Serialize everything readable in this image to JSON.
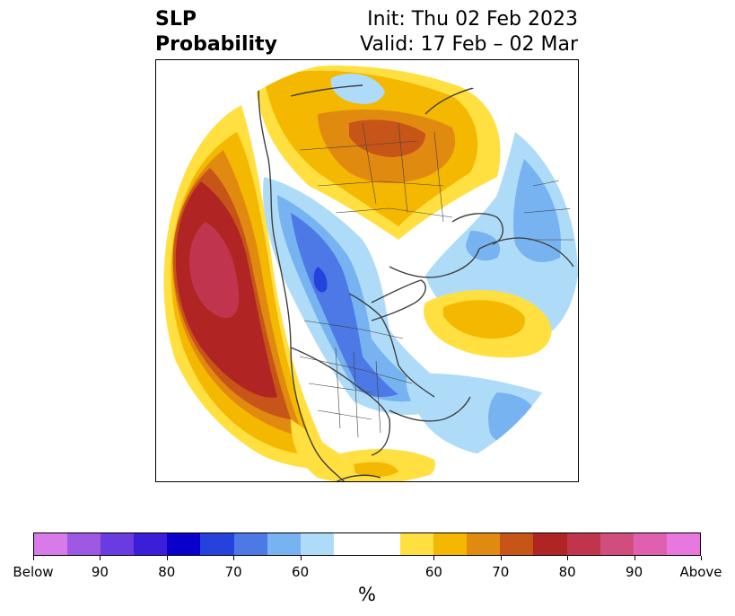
{
  "title": {
    "variable": "SLP",
    "product": "Probability",
    "init": "Init: Thu 02 Feb 2023",
    "valid": "Valid: 17 Feb – 02 Mar"
  },
  "colorbar": {
    "colors": [
      "#d87ae8",
      "#9d59e4",
      "#6a3be0",
      "#3b1fd8",
      "#0a00cc",
      "#2542dc",
      "#4d79e6",
      "#78b3f1",
      "#aedcf8",
      "#ffffff",
      "#ffffff",
      "#ffe040",
      "#f5b800",
      "#e08a10",
      "#c85518",
      "#b02424",
      "#c0344e",
      "#d04d7e",
      "#e060b0",
      "#e878e0"
    ],
    "ticks": [
      "Below",
      "90",
      "80",
      "70",
      "60",
      "60",
      "70",
      "80",
      "90",
      "Above"
    ],
    "unit": "%"
  },
  "map_layers": {
    "below_light": "#aedcf8",
    "below_mid": "#78b3f1",
    "below_strong": "#4d79e6",
    "below_deep": "#2542dc",
    "above_light": "#ffe040",
    "above_mid": "#f5b800",
    "above_strong": "#e08a10",
    "above_stronger": "#c85518",
    "above_deep": "#b02424",
    "above_peak": "#c0344e",
    "coastline": "#404040"
  }
}
